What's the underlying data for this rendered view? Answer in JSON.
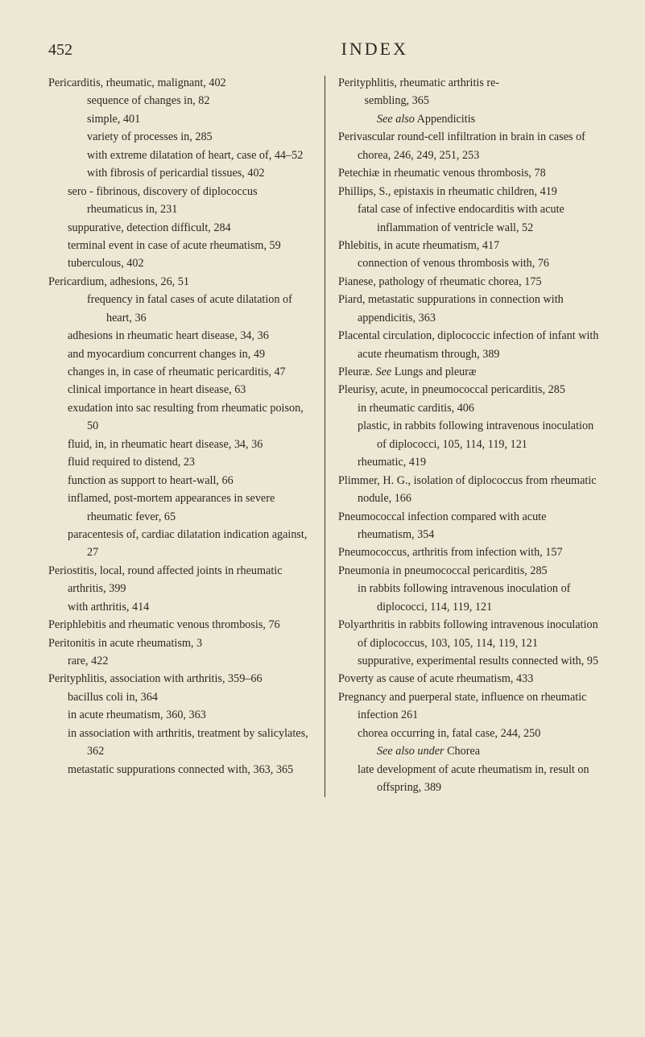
{
  "page_number": "452",
  "page_title": "INDEX",
  "background_color": "#ede8d4",
  "text_color": "#2b2820",
  "left_column": {
    "e1": "Pericarditis, rheumatic, malignant, 402",
    "e1a": "sequence of changes in, 82",
    "e1b": "simple, 401",
    "e1c": "variety of processes in, 285",
    "e1d": "with extreme dilatation of heart, case of, 44–52",
    "e1e": "with fibrosis of pericardial tissues, 402",
    "e1f": "sero - fibrinous, discovery of diplococcus rheumaticus in, 231",
    "e1g": "suppurative, detection difficult, 284",
    "e1h": "terminal event in case of acute rheumatism, 59",
    "e1i": "tuberculous, 402",
    "e2": "Pericardium, adhesions, 26, 51",
    "e2a": "frequency in fatal cases of acute dilatation of heart, 36",
    "e2b": "adhesions in rheumatic heart disease, 34, 36",
    "e2c": "and myocardium concurrent changes in, 49",
    "e2d": "changes in, in case of rheumatic pericarditis, 47",
    "e2e": "clinical importance in heart disease, 63",
    "e2f": "exudation into sac resulting from rheumatic poison, 50",
    "e2g": "fluid, in, in rheumatic heart disease, 34, 36",
    "e2h": "fluid required to distend, 23",
    "e2i": "function as support to heart-wall, 66",
    "e2j": "inflamed, post-mortem appearances in severe rheumatic fever, 65",
    "e2k": "paracentesis of, cardiac dilatation indication against, 27",
    "e3": "Periostitis, local, round affected joints in rheumatic arthritis, 399",
    "e3a": "with arthritis, 414",
    "e4": "Periphlebitis and rheumatic venous thrombosis, 76",
    "e5": "Peritonitis in acute rheumatism, 3",
    "e5a": "rare, 422",
    "e6": "Perityphlitis, association with arthritis, 359–66",
    "e6a": "bacillus coli in, 364",
    "e6b": "in acute rheumatism, 360, 363",
    "e6c": "in association with arthritis, treatment by salicylates, 362",
    "e6d": "metastatic suppurations connected with, 363, 365"
  },
  "right_column": {
    "r1": "Perityphlitis, rheumatic arthritis re-",
    "r1_sembling": "sembling, 365",
    "r1a_prefix": "See also",
    "r1a_text": " Appendicitis",
    "r2": "Perivascular round-cell infiltration in brain in cases of chorea, 246, 249, 251, 253",
    "r3": "Petechiæ in rheumatic venous thrombosis, 78",
    "r4": "Phillips, S., epistaxis in rheumatic children, 419",
    "r4a": "fatal case of infective endocarditis with acute inflammation of ventricle wall, 52",
    "r5": "Phlebitis, in acute rheumatism, 417",
    "r5a": "connection of venous thrombosis with, 76",
    "r6": "Pianese, pathology of rheumatic chorea, 175",
    "r7": "Piard, metastatic suppurations in connection with appendicitis, 363",
    "r8": "Placental circulation, diplococcic infection of infant with acute rheumatism through, 389",
    "r9_prefix": "Pleuræ. ",
    "r9_see": "See",
    "r9_text": " Lungs and pleuræ",
    "r10": "Pleurisy, acute, in pneumococcal pericarditis, 285",
    "r10a": "in rheumatic carditis, 406",
    "r10b": "plastic, in rabbits following intravenous inoculation of diplococci, 105, 114, 119, 121",
    "r10c": "rheumatic, 419",
    "r11": "Plimmer, H. G., isolation of diplococcus from rheumatic nodule, 166",
    "r12": "Pneumococcal infection compared with acute rheumatism, 354",
    "r13": "Pneumococcus, arthritis from infection with, 157",
    "r14": "Pneumonia in pneumococcal pericarditis, 285",
    "r14a": "in rabbits following intravenous inoculation of diplococci, 114, 119, 121",
    "r15": "Polyarthritis in rabbits following intravenous inoculation of diplococcus, 103, 105, 114, 119, 121",
    "r15a": "suppurative, experimental results connected with, 95",
    "r16": "Poverty as cause of acute rheumatism, 433",
    "r17": "Pregnancy and puerperal state, influence on rheumatic infection 261",
    "r17a": "chorea occurring in, fatal case, 244, 250",
    "r17b_prefix": "See also under",
    "r17b_text": " Chorea",
    "r17c": "late development of acute rheumatism in, result on offspring, 389"
  }
}
